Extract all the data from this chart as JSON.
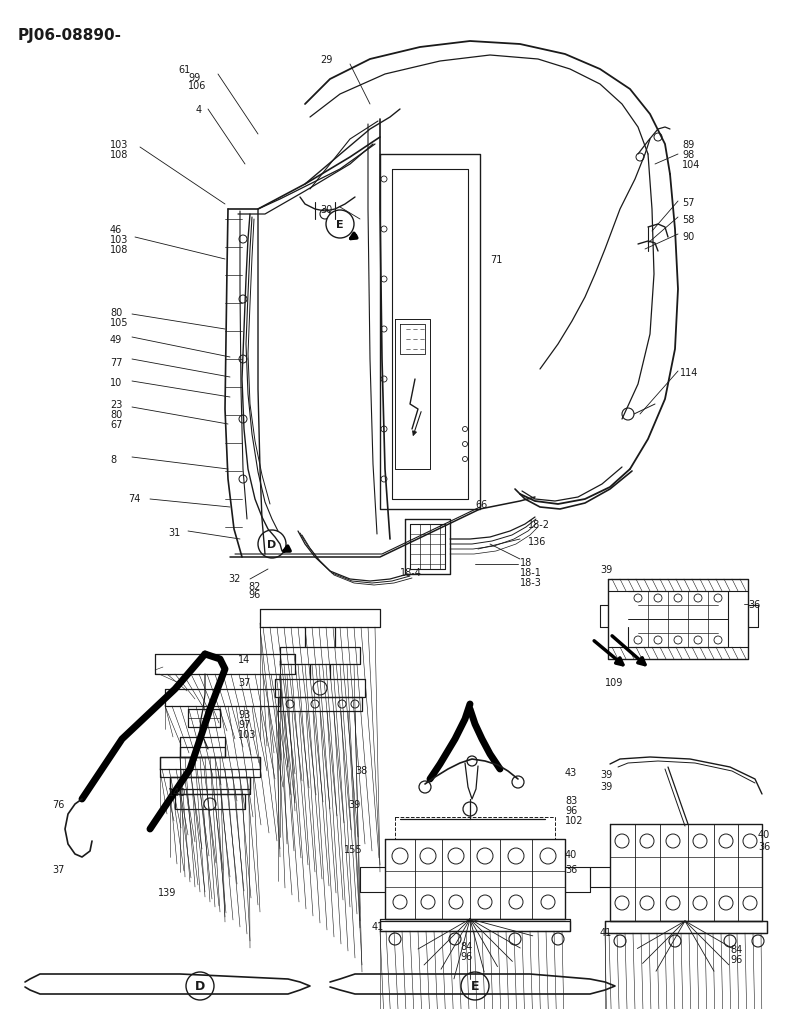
{
  "title": "PJ06-08890-",
  "bg_color": "#ffffff",
  "line_color": "#1a1a1a",
  "title_fontsize": 11,
  "label_fontsize": 7.0,
  "fig_width": 7.72,
  "fig_height": 10.0
}
